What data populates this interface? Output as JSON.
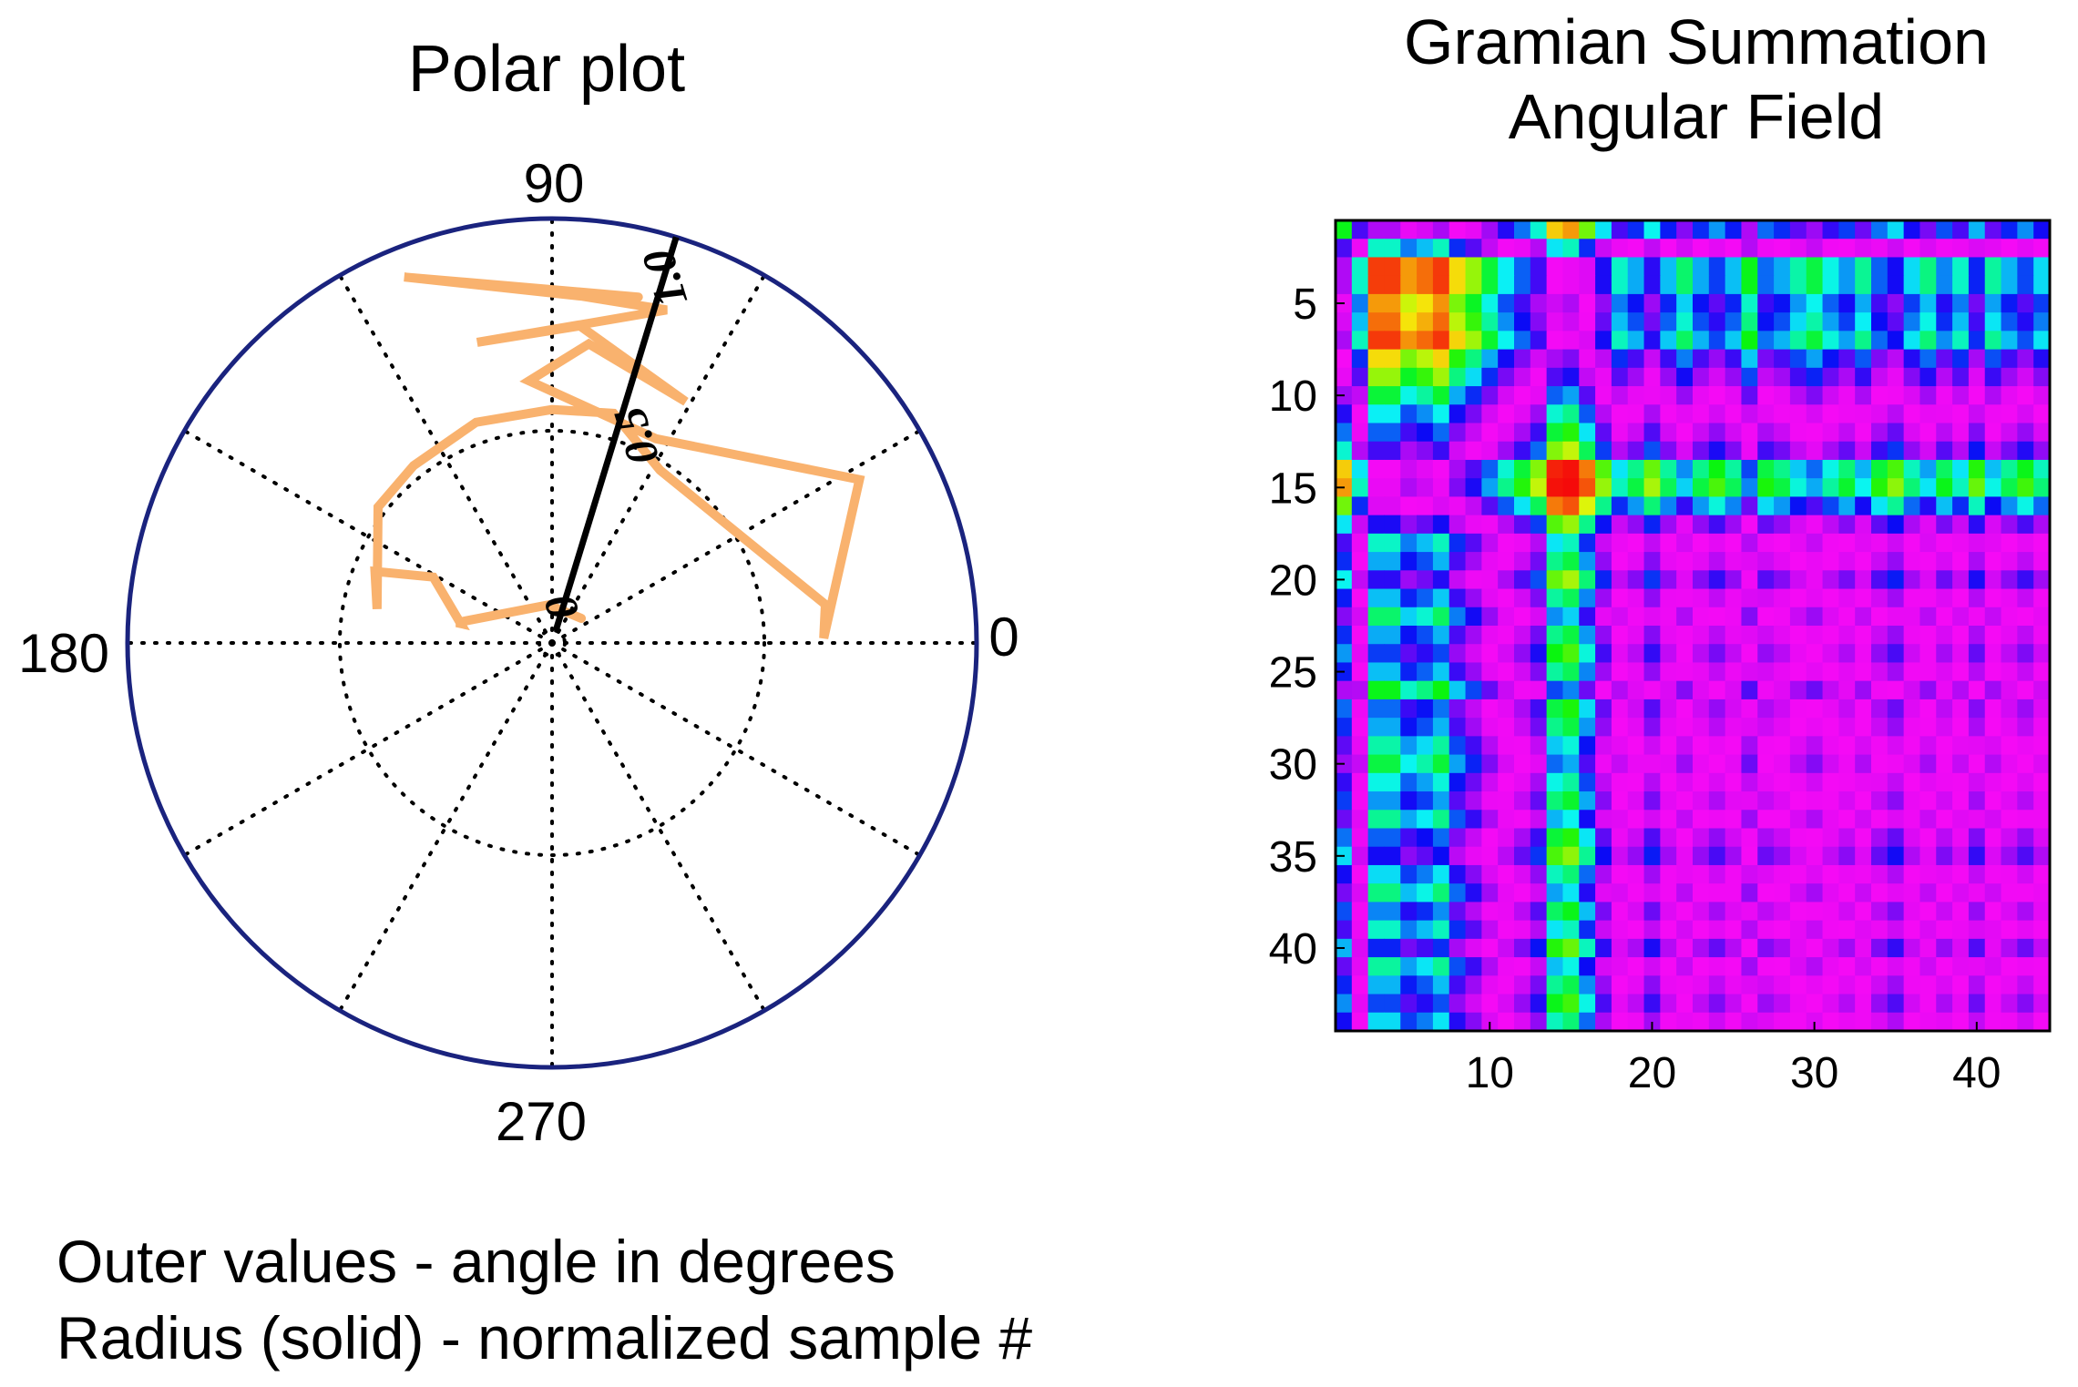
{
  "chart_data": [
    {
      "type": "polar",
      "title": "Polar plot",
      "angle_ticks": [
        "0",
        "90",
        "180",
        "270"
      ],
      "radius_ticks": [
        "0",
        "0.5",
        "1.0"
      ],
      "radius_line_angle_deg": 73,
      "grid": true,
      "grid_style": "dotted",
      "circle_color": "#1a237e",
      "series_color": "#f9b26e",
      "series": [
        {
          "points": [
            {
              "theta": 40,
              "r": 0.09
            },
            {
              "theta": 95,
              "r": 0.09
            },
            {
              "theta": 168,
              "r": 0.23
            },
            {
              "theta": 168,
              "r": 0.22
            },
            {
              "theta": 151,
              "r": 0.32
            },
            {
              "theta": 158,
              "r": 0.45
            },
            {
              "theta": 169,
              "r": 0.42
            },
            {
              "theta": 142,
              "r": 0.52
            },
            {
              "theta": 128,
              "r": 0.53
            },
            {
              "theta": 109,
              "r": 0.55
            },
            {
              "theta": 90,
              "r": 0.55
            },
            {
              "theta": 75,
              "r": 0.56
            },
            {
              "theta": 58,
              "r": 0.48
            },
            {
              "theta": 8,
              "r": 0.65
            },
            {
              "theta": 1,
              "r": 0.64
            },
            {
              "theta": 28,
              "r": 0.82
            },
            {
              "theta": 63,
              "r": 0.54
            },
            {
              "theta": 95,
              "r": 0.62
            },
            {
              "theta": 83,
              "r": 0.71
            },
            {
              "theta": 61,
              "r": 0.65
            },
            {
              "theta": 85,
              "r": 0.75
            },
            {
              "theta": 104,
              "r": 0.73
            },
            {
              "theta": 83,
              "r": 0.76
            },
            {
              "theta": 71,
              "r": 0.83
            },
            {
              "theta": 85,
              "r": 0.82
            },
            {
              "theta": 112,
              "r": 0.93
            },
            {
              "theta": 76,
              "r": 0.84
            }
          ]
        }
      ],
      "footnote": [
        "Outer values - angle in degrees",
        "Radius (solid) - normalized sample #"
      ]
    },
    {
      "type": "heatmap",
      "title": [
        "Gramian Summation",
        "Angular Field"
      ],
      "x_ticks": [
        "10",
        "20",
        "30",
        "40"
      ],
      "y_ticks": [
        "5",
        "10",
        "15",
        "20",
        "25",
        "30",
        "35",
        "40"
      ],
      "size": 44,
      "range": [
        1,
        44
      ],
      "colormap": "hsv",
      "signal_angles_deg": [
        40,
        95,
        168,
        168,
        151,
        158,
        169,
        142,
        128,
        109,
        90,
        75,
        58,
        8,
        1,
        28,
        63,
        95,
        83,
        61,
        85,
        104,
        83,
        71,
        85,
        112,
        76,
        83,
        98,
        108,
        92,
        81,
        100,
        75,
        64,
        88,
        102,
        79,
        95,
        68,
        99,
        84,
        72,
        88
      ]
    }
  ]
}
